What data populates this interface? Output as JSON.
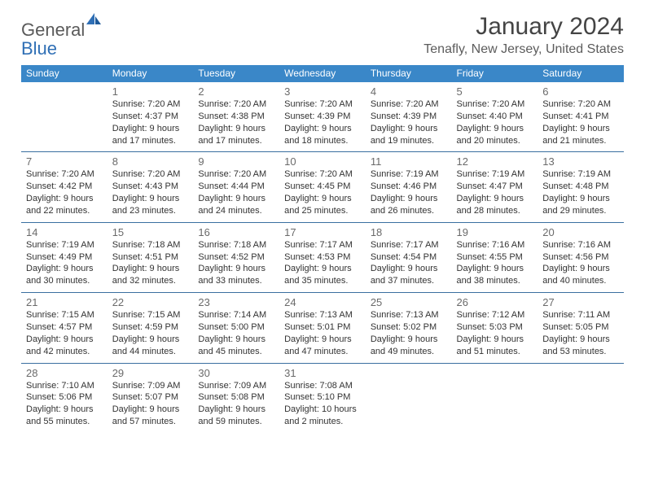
{
  "brand": {
    "text_gray": "General",
    "text_blue": "Blue"
  },
  "title": "January 2024",
  "location": "Tenafly, New Jersey, United States",
  "colors": {
    "header_bg": "#3a87c8",
    "header_text": "#ffffff",
    "rule": "#3a6fa0",
    "daynum": "#6a6a6a",
    "body_text": "#333333",
    "brand_gray": "#5a5a5a",
    "brand_blue": "#2f6fb5",
    "page_bg": "#ffffff"
  },
  "day_headers": [
    "Sunday",
    "Monday",
    "Tuesday",
    "Wednesday",
    "Thursday",
    "Friday",
    "Saturday"
  ],
  "weeks": [
    [
      {
        "num": "",
        "lines": []
      },
      {
        "num": "1",
        "lines": [
          "Sunrise: 7:20 AM",
          "Sunset: 4:37 PM",
          "Daylight: 9 hours",
          "and 17 minutes."
        ]
      },
      {
        "num": "2",
        "lines": [
          "Sunrise: 7:20 AM",
          "Sunset: 4:38 PM",
          "Daylight: 9 hours",
          "and 17 minutes."
        ]
      },
      {
        "num": "3",
        "lines": [
          "Sunrise: 7:20 AM",
          "Sunset: 4:39 PM",
          "Daylight: 9 hours",
          "and 18 minutes."
        ]
      },
      {
        "num": "4",
        "lines": [
          "Sunrise: 7:20 AM",
          "Sunset: 4:39 PM",
          "Daylight: 9 hours",
          "and 19 minutes."
        ]
      },
      {
        "num": "5",
        "lines": [
          "Sunrise: 7:20 AM",
          "Sunset: 4:40 PM",
          "Daylight: 9 hours",
          "and 20 minutes."
        ]
      },
      {
        "num": "6",
        "lines": [
          "Sunrise: 7:20 AM",
          "Sunset: 4:41 PM",
          "Daylight: 9 hours",
          "and 21 minutes."
        ]
      }
    ],
    [
      {
        "num": "7",
        "lines": [
          "Sunrise: 7:20 AM",
          "Sunset: 4:42 PM",
          "Daylight: 9 hours",
          "and 22 minutes."
        ]
      },
      {
        "num": "8",
        "lines": [
          "Sunrise: 7:20 AM",
          "Sunset: 4:43 PM",
          "Daylight: 9 hours",
          "and 23 minutes."
        ]
      },
      {
        "num": "9",
        "lines": [
          "Sunrise: 7:20 AM",
          "Sunset: 4:44 PM",
          "Daylight: 9 hours",
          "and 24 minutes."
        ]
      },
      {
        "num": "10",
        "lines": [
          "Sunrise: 7:20 AM",
          "Sunset: 4:45 PM",
          "Daylight: 9 hours",
          "and 25 minutes."
        ]
      },
      {
        "num": "11",
        "lines": [
          "Sunrise: 7:19 AM",
          "Sunset: 4:46 PM",
          "Daylight: 9 hours",
          "and 26 minutes."
        ]
      },
      {
        "num": "12",
        "lines": [
          "Sunrise: 7:19 AM",
          "Sunset: 4:47 PM",
          "Daylight: 9 hours",
          "and 28 minutes."
        ]
      },
      {
        "num": "13",
        "lines": [
          "Sunrise: 7:19 AM",
          "Sunset: 4:48 PM",
          "Daylight: 9 hours",
          "and 29 minutes."
        ]
      }
    ],
    [
      {
        "num": "14",
        "lines": [
          "Sunrise: 7:19 AM",
          "Sunset: 4:49 PM",
          "Daylight: 9 hours",
          "and 30 minutes."
        ]
      },
      {
        "num": "15",
        "lines": [
          "Sunrise: 7:18 AM",
          "Sunset: 4:51 PM",
          "Daylight: 9 hours",
          "and 32 minutes."
        ]
      },
      {
        "num": "16",
        "lines": [
          "Sunrise: 7:18 AM",
          "Sunset: 4:52 PM",
          "Daylight: 9 hours",
          "and 33 minutes."
        ]
      },
      {
        "num": "17",
        "lines": [
          "Sunrise: 7:17 AM",
          "Sunset: 4:53 PM",
          "Daylight: 9 hours",
          "and 35 minutes."
        ]
      },
      {
        "num": "18",
        "lines": [
          "Sunrise: 7:17 AM",
          "Sunset: 4:54 PM",
          "Daylight: 9 hours",
          "and 37 minutes."
        ]
      },
      {
        "num": "19",
        "lines": [
          "Sunrise: 7:16 AM",
          "Sunset: 4:55 PM",
          "Daylight: 9 hours",
          "and 38 minutes."
        ]
      },
      {
        "num": "20",
        "lines": [
          "Sunrise: 7:16 AM",
          "Sunset: 4:56 PM",
          "Daylight: 9 hours",
          "and 40 minutes."
        ]
      }
    ],
    [
      {
        "num": "21",
        "lines": [
          "Sunrise: 7:15 AM",
          "Sunset: 4:57 PM",
          "Daylight: 9 hours",
          "and 42 minutes."
        ]
      },
      {
        "num": "22",
        "lines": [
          "Sunrise: 7:15 AM",
          "Sunset: 4:59 PM",
          "Daylight: 9 hours",
          "and 44 minutes."
        ]
      },
      {
        "num": "23",
        "lines": [
          "Sunrise: 7:14 AM",
          "Sunset: 5:00 PM",
          "Daylight: 9 hours",
          "and 45 minutes."
        ]
      },
      {
        "num": "24",
        "lines": [
          "Sunrise: 7:13 AM",
          "Sunset: 5:01 PM",
          "Daylight: 9 hours",
          "and 47 minutes."
        ]
      },
      {
        "num": "25",
        "lines": [
          "Sunrise: 7:13 AM",
          "Sunset: 5:02 PM",
          "Daylight: 9 hours",
          "and 49 minutes."
        ]
      },
      {
        "num": "26",
        "lines": [
          "Sunrise: 7:12 AM",
          "Sunset: 5:03 PM",
          "Daylight: 9 hours",
          "and 51 minutes."
        ]
      },
      {
        "num": "27",
        "lines": [
          "Sunrise: 7:11 AM",
          "Sunset: 5:05 PM",
          "Daylight: 9 hours",
          "and 53 minutes."
        ]
      }
    ],
    [
      {
        "num": "28",
        "lines": [
          "Sunrise: 7:10 AM",
          "Sunset: 5:06 PM",
          "Daylight: 9 hours",
          "and 55 minutes."
        ]
      },
      {
        "num": "29",
        "lines": [
          "Sunrise: 7:09 AM",
          "Sunset: 5:07 PM",
          "Daylight: 9 hours",
          "and 57 minutes."
        ]
      },
      {
        "num": "30",
        "lines": [
          "Sunrise: 7:09 AM",
          "Sunset: 5:08 PM",
          "Daylight: 9 hours",
          "and 59 minutes."
        ]
      },
      {
        "num": "31",
        "lines": [
          "Sunrise: 7:08 AM",
          "Sunset: 5:10 PM",
          "Daylight: 10 hours",
          "and 2 minutes."
        ]
      },
      {
        "num": "",
        "lines": []
      },
      {
        "num": "",
        "lines": []
      },
      {
        "num": "",
        "lines": []
      }
    ]
  ]
}
